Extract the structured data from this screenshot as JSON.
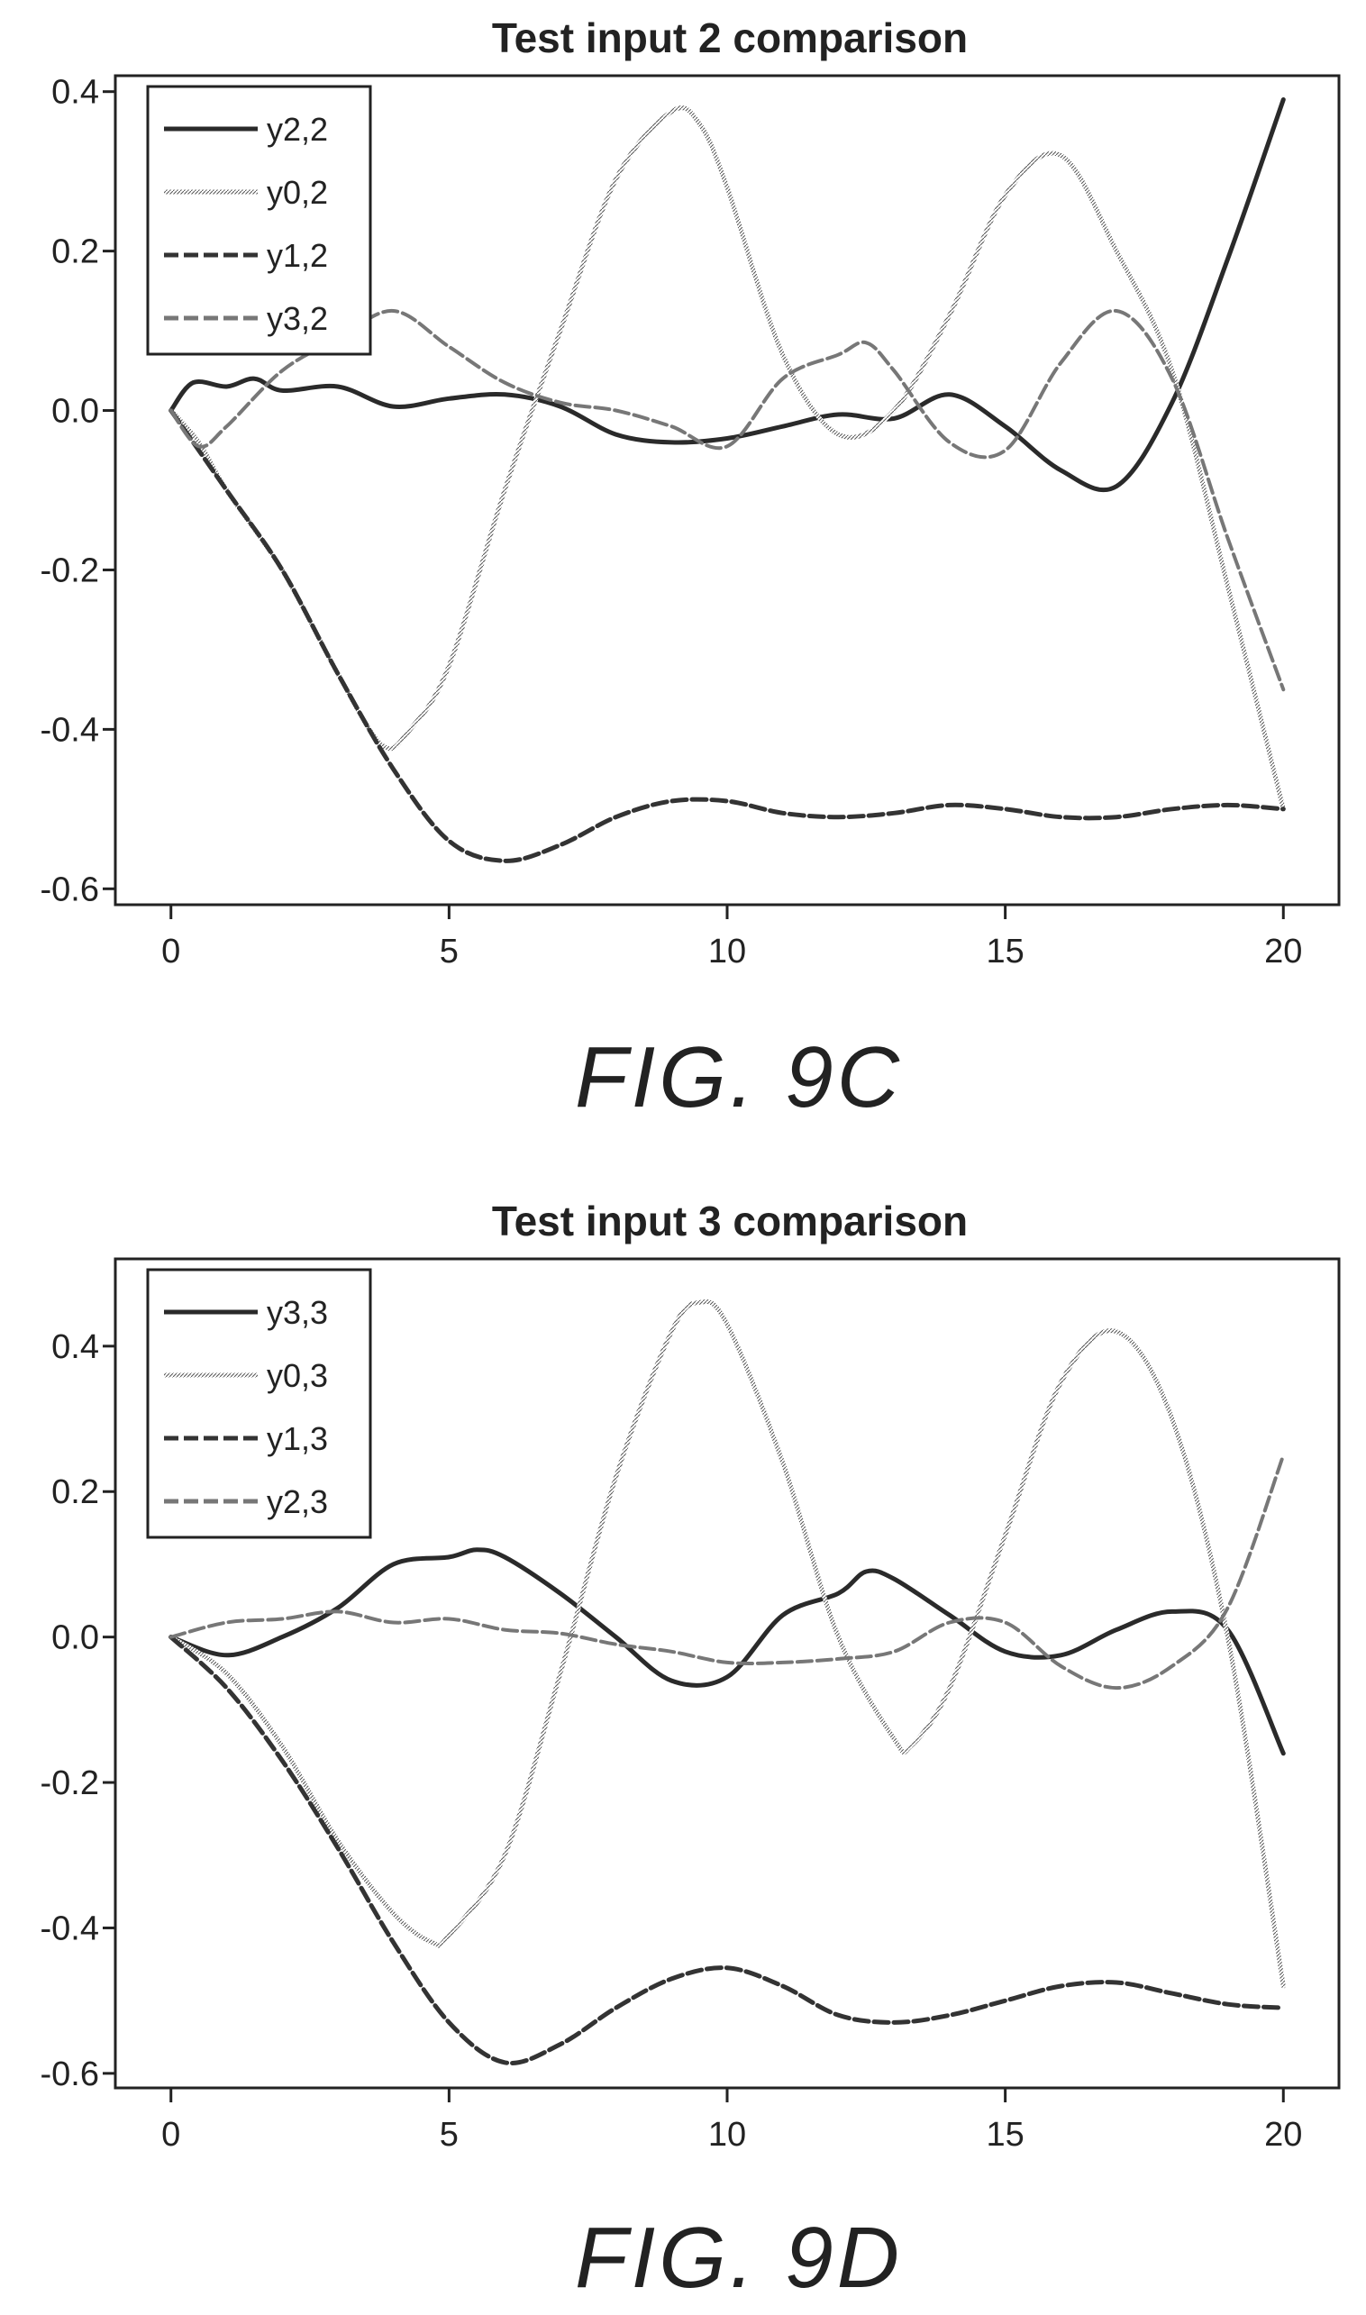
{
  "chart_data": [
    {
      "type": "line",
      "title": "Test input 2 comparison",
      "caption": "FIG. 9C",
      "xlim": [
        -1,
        21
      ],
      "ylim": [
        -0.62,
        0.42
      ],
      "xticks": [
        0,
        5,
        10,
        15,
        20
      ],
      "xtick_labels": [
        "0",
        "5",
        "10",
        "15",
        "20"
      ],
      "yticks": [
        0.4,
        0.2,
        0.0,
        -0.2,
        -0.4,
        -0.6
      ],
      "ytick_labels": [
        "0.4",
        "0.2",
        "0.0",
        "-0.2",
        "-0.4",
        "-0.6"
      ],
      "legend_position": "top-left",
      "series": [
        {
          "name": "y2,2",
          "style": "solid-dark",
          "x": [
            0,
            0.4,
            1,
            1.5,
            2,
            3,
            4,
            5,
            6,
            7,
            8,
            9,
            10,
            11,
            12,
            13,
            14,
            15,
            16,
            17,
            18,
            19,
            20
          ],
          "y": [
            0,
            0.035,
            0.03,
            0.04,
            0.025,
            0.03,
            0.005,
            0.015,
            0.02,
            0.005,
            -0.03,
            -0.04,
            -0.035,
            -0.02,
            -0.005,
            -0.01,
            0.02,
            -0.02,
            -0.075,
            -0.095,
            0.01,
            0.19,
            0.39
          ]
        },
        {
          "name": "y0,2",
          "style": "light",
          "x": [
            0,
            0.5,
            1,
            2,
            3,
            3.8,
            4.3,
            5,
            6,
            7,
            8,
            9,
            9.5,
            10,
            11,
            12,
            13,
            14,
            15,
            16,
            17,
            18,
            19,
            20
          ],
          "y": [
            0,
            -0.04,
            -0.1,
            -0.2,
            -0.33,
            -0.42,
            -0.4,
            -0.32,
            -0.1,
            0.1,
            0.29,
            0.375,
            0.36,
            0.28,
            0.07,
            -0.03,
            0.0,
            0.12,
            0.27,
            0.32,
            0.2,
            0.05,
            -0.22,
            -0.5
          ]
        },
        {
          "name": "y1,2",
          "style": "dashed-dark",
          "x": [
            0,
            1,
            2,
            3,
            4,
            5,
            6,
            7,
            8,
            9,
            10,
            11,
            12,
            13,
            14,
            15,
            16,
            17,
            18,
            19,
            20
          ],
          "y": [
            0,
            -0.1,
            -0.2,
            -0.33,
            -0.45,
            -0.54,
            -0.565,
            -0.545,
            -0.51,
            -0.49,
            -0.49,
            -0.505,
            -0.51,
            -0.505,
            -0.495,
            -0.5,
            -0.51,
            -0.51,
            -0.5,
            -0.495,
            -0.5
          ]
        },
        {
          "name": "y3,2",
          "style": "dashed-light",
          "x": [
            0,
            0.5,
            1,
            2,
            3,
            4,
            5,
            6,
            7,
            8,
            9,
            10,
            11,
            12,
            12.5,
            13,
            14,
            15,
            16,
            17,
            18,
            19,
            20
          ],
          "y": [
            0,
            -0.045,
            -0.02,
            0.05,
            0.09,
            0.125,
            0.08,
            0.035,
            0.01,
            0.0,
            -0.02,
            -0.045,
            0.04,
            0.07,
            0.085,
            0.05,
            -0.04,
            -0.05,
            0.06,
            0.125,
            0.04,
            -0.16,
            -0.35
          ]
        }
      ]
    },
    {
      "type": "line",
      "title": "Test input 3 comparison",
      "caption": "FIG. 9D",
      "xlim": [
        -1,
        21
      ],
      "ylim": [
        -0.62,
        0.52
      ],
      "xticks": [
        0,
        5,
        10,
        15,
        20
      ],
      "xtick_labels": [
        "0",
        "5",
        "10",
        "15",
        "20"
      ],
      "yticks": [
        0.4,
        0.2,
        0.0,
        -0.2,
        -0.4,
        -0.6
      ],
      "ytick_labels": [
        "0.4",
        "0.2",
        "0.0",
        "-0.2",
        "-0.4",
        "-0.6"
      ],
      "legend_position": "top-left",
      "series": [
        {
          "name": "y3,3",
          "style": "solid-dark",
          "x": [
            0,
            1,
            2,
            3,
            4,
            5,
            5.5,
            6,
            7,
            8,
            9,
            10,
            11,
            12,
            12.5,
            13,
            14,
            15,
            16,
            17,
            18,
            19,
            20
          ],
          "y": [
            0,
            -0.025,
            0.0,
            0.04,
            0.1,
            0.11,
            0.12,
            0.11,
            0.06,
            0.0,
            -0.06,
            -0.055,
            0.03,
            0.06,
            0.09,
            0.08,
            0.03,
            -0.02,
            -0.025,
            0.01,
            0.035,
            0.01,
            -0.16
          ]
        },
        {
          "name": "y0,3",
          "style": "light",
          "x": [
            0,
            1,
            2,
            3,
            4,
            4.7,
            5,
            6,
            7,
            8,
            9,
            9.5,
            10,
            11,
            12,
            13,
            13.3,
            14,
            15,
            16,
            17,
            18,
            19,
            20
          ],
          "y": [
            0,
            -0.05,
            -0.15,
            -0.28,
            -0.38,
            -0.42,
            -0.41,
            -0.3,
            -0.05,
            0.22,
            0.42,
            0.46,
            0.43,
            0.24,
            0.0,
            -0.14,
            -0.15,
            -0.07,
            0.14,
            0.35,
            0.42,
            0.3,
            0.0,
            -0.48
          ]
        },
        {
          "name": "y1,3",
          "style": "dashed-dark",
          "x": [
            0,
            1,
            2,
            3,
            4,
            5,
            6,
            7,
            8,
            9,
            10,
            11,
            12,
            13,
            14,
            15,
            16,
            17,
            18,
            19,
            20
          ],
          "y": [
            0,
            -0.07,
            -0.17,
            -0.29,
            -0.42,
            -0.53,
            -0.585,
            -0.56,
            -0.51,
            -0.47,
            -0.455,
            -0.48,
            -0.52,
            -0.53,
            -0.52,
            -0.5,
            -0.48,
            -0.475,
            -0.49,
            -0.505,
            -0.51
          ]
        },
        {
          "name": "y2,3",
          "style": "dashed-light",
          "x": [
            0,
            1,
            2,
            3,
            4,
            5,
            6,
            7,
            8,
            9,
            10,
            11,
            12,
            13,
            14,
            15,
            16,
            17,
            18,
            19,
            20
          ],
          "y": [
            0,
            0.02,
            0.025,
            0.035,
            0.02,
            0.025,
            0.01,
            0.005,
            -0.01,
            -0.02,
            -0.035,
            -0.035,
            -0.03,
            -0.02,
            0.02,
            0.02,
            -0.04,
            -0.07,
            -0.04,
            0.04,
            0.25
          ]
        }
      ]
    }
  ]
}
